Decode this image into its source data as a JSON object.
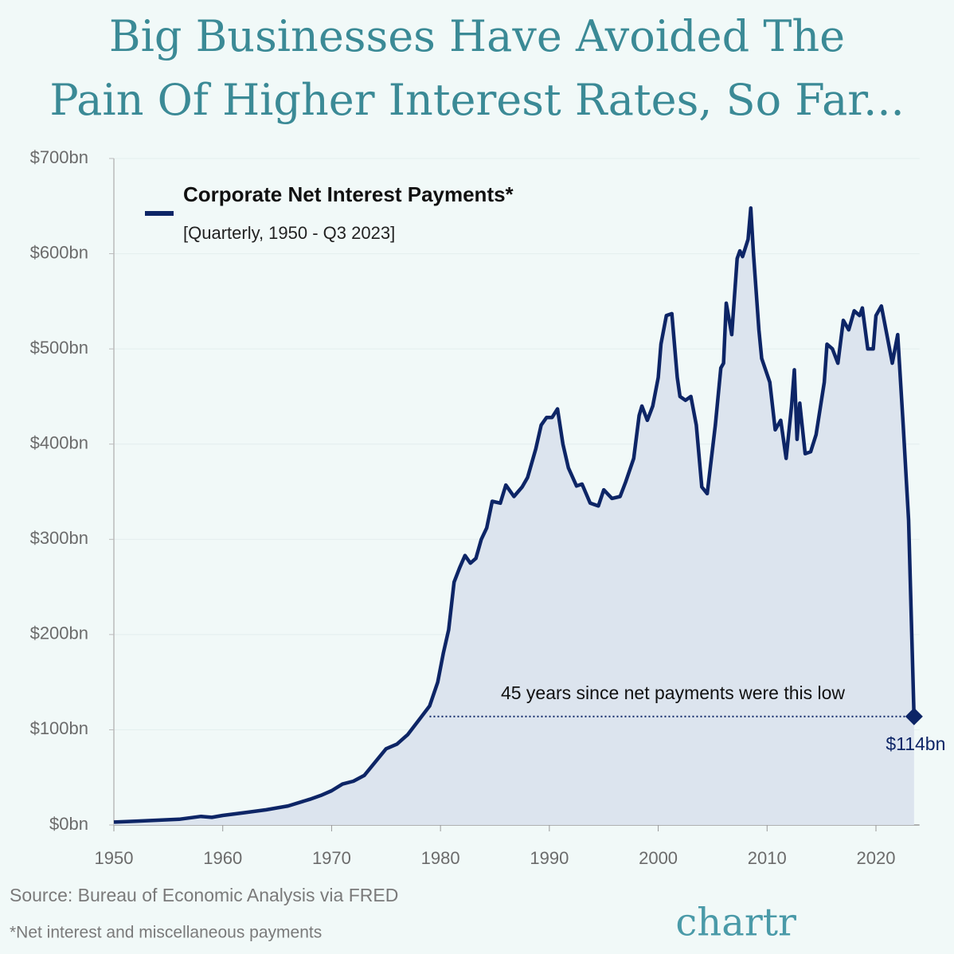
{
  "chart_data": {
    "type": "line",
    "title": [
      "Big Businesses Have Avoided The",
      "Pain Of Higher Interest Rates, So Far..."
    ],
    "legend_subtitle": "[Quarterly, 1950 - Q3 2023]",
    "annotation": "45 years since net payments were this low",
    "end_label": {
      "value": 114,
      "label": "$114bn"
    },
    "source": "Source: Bureau of Economic Analysis via FRED",
    "footnote": "*Net interest and miscellaneous payments",
    "brand": "chartr",
    "xlim": [
      1950,
      2024
    ],
    "xticks": [
      1950,
      1960,
      1970,
      1980,
      1990,
      2000,
      2010,
      2020
    ],
    "ylim": [
      0,
      700
    ],
    "yticks": [
      {
        "value": 0,
        "label": "$0bn"
      },
      {
        "value": 100,
        "label": "$100bn"
      },
      {
        "value": 200,
        "label": "$200bn"
      },
      {
        "value": 300,
        "label": "$300bn"
      },
      {
        "value": 400,
        "label": "$400bn"
      },
      {
        "value": 500,
        "label": "$500bn"
      },
      {
        "value": 600,
        "label": "$600bn"
      },
      {
        "value": 700,
        "label": "$700bn"
      }
    ],
    "grid": true,
    "x": [
      1950,
      1952,
      1954,
      1956,
      1958,
      1959,
      1960,
      1962,
      1964,
      1966,
      1968,
      1969,
      1970,
      1971,
      1972,
      1973,
      1974,
      1975,
      1976,
      1977,
      1978,
      1979,
      1979.75,
      1980.25,
      1980.75,
      1981.25,
      1981.75,
      1982.25,
      1982.75,
      1983.25,
      1983.75,
      1984.25,
      1984.75,
      1985.5,
      1986,
      1986.75,
      1987.5,
      1988,
      1988.75,
      1989.25,
      1989.75,
      1990.25,
      1990.75,
      1991.25,
      1991.75,
      1992.5,
      1993,
      1993.75,
      1994.5,
      1995,
      1995.75,
      1996.5,
      1997,
      1997.75,
      1998.25,
      1998.5,
      1999,
      1999.5,
      2000,
      2000.25,
      2000.75,
      2001.25,
      2001.75,
      2002,
      2002.5,
      2003,
      2003.5,
      2004,
      2004.5,
      2005.25,
      2005.75,
      2006,
      2006.25,
      2006.75,
      2007.25,
      2007.5,
      2007.75,
      2008.25,
      2008.5,
      2008.75,
      2009.25,
      2009.5,
      2010.25,
      2010.75,
      2011.25,
      2011.75,
      2012.25,
      2012.5,
      2012.75,
      2013,
      2013.5,
      2014,
      2014.5,
      2015.25,
      2015.5,
      2016,
      2016.5,
      2017,
      2017.5,
      2018,
      2018.5,
      2018.75,
      2019.25,
      2019.75,
      2020,
      2020.5,
      2021,
      2021.5,
      2022,
      2022.5,
      2023,
      2023.5
    ],
    "series": [
      {
        "name": "Corporate Net Interest Payments*",
        "color": "#0d2566",
        "fill": "#dce4ee",
        "values": [
          3,
          4,
          5,
          6,
          9,
          8,
          10,
          13,
          16,
          20,
          27,
          31,
          36,
          43,
          46,
          52,
          66,
          80,
          85,
          95,
          110,
          125,
          150,
          180,
          205,
          255,
          270,
          283,
          275,
          280,
          300,
          312,
          340,
          338,
          357,
          345,
          355,
          365,
          395,
          420,
          428,
          428,
          437,
          400,
          375,
          356,
          358,
          338,
          335,
          352,
          343,
          345,
          360,
          385,
          430,
          440,
          425,
          440,
          470,
          505,
          535,
          537,
          470,
          450,
          446,
          450,
          420,
          355,
          348,
          420,
          480,
          485,
          548,
          515,
          595,
          603,
          597,
          615,
          648,
          600,
          520,
          490,
          465,
          415,
          425,
          385,
          440,
          478,
          405,
          443,
          390,
          392,
          410,
          465,
          505,
          500,
          485,
          530,
          520,
          540,
          535,
          543,
          500,
          500,
          535,
          545,
          515,
          485,
          515,
          420,
          320,
          114
        ]
      }
    ]
  }
}
